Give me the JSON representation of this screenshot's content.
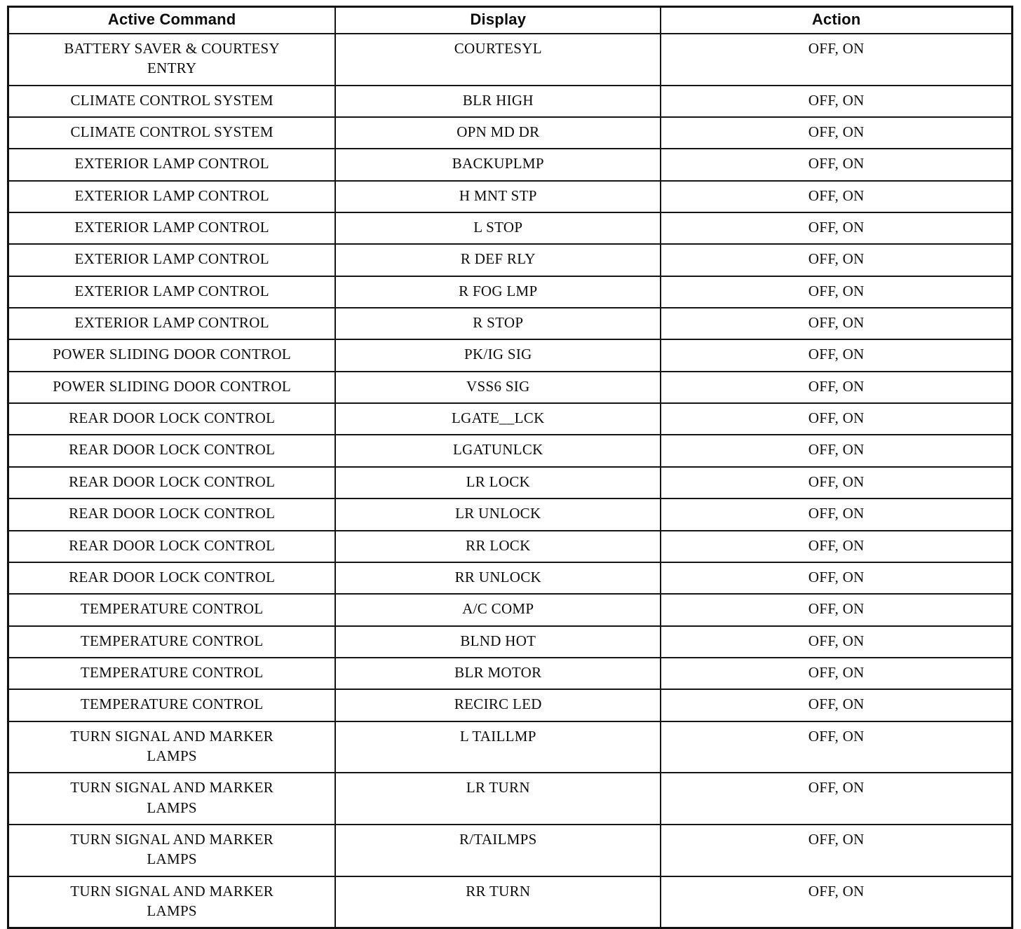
{
  "table": {
    "headers": [
      "Active Command",
      "Display",
      "Action"
    ],
    "rows": [
      {
        "command": "BATTERY SAVER & COURTESY ENTRY",
        "display": "COURTESYL",
        "action": "OFF, ON"
      },
      {
        "command": "CLIMATE CONTROL SYSTEM",
        "display": "BLR HIGH",
        "action": "OFF, ON"
      },
      {
        "command": "CLIMATE CONTROL SYSTEM",
        "display": "OPN MD DR",
        "action": "OFF, ON"
      },
      {
        "command": "EXTERIOR LAMP CONTROL",
        "display": "BACKUPLMP",
        "action": "OFF, ON"
      },
      {
        "command": "EXTERIOR LAMP CONTROL",
        "display": "H MNT STP",
        "action": "OFF, ON"
      },
      {
        "command": "EXTERIOR LAMP CONTROL",
        "display": "L STOP",
        "action": "OFF, ON"
      },
      {
        "command": "EXTERIOR LAMP CONTROL",
        "display": "R DEF RLY",
        "action": "OFF, ON"
      },
      {
        "command": "EXTERIOR LAMP CONTROL",
        "display": "R FOG LMP",
        "action": "OFF, ON"
      },
      {
        "command": "EXTERIOR LAMP CONTROL",
        "display": "R STOP",
        "action": "OFF, ON"
      },
      {
        "command": "POWER SLIDING DOOR CONTROL",
        "display": "PK/IG SIG",
        "action": "OFF, ON"
      },
      {
        "command": "POWER SLIDING DOOR CONTROL",
        "display": "VSS6 SIG",
        "action": "OFF, ON"
      },
      {
        "command": "REAR DOOR LOCK CONTROL",
        "display": "LGATE__LCK",
        "action": "OFF, ON"
      },
      {
        "command": "REAR DOOR LOCK CONTROL",
        "display": "LGATUNLCK",
        "action": "OFF, ON"
      },
      {
        "command": "REAR DOOR LOCK CONTROL",
        "display": "LR LOCK",
        "action": "OFF, ON"
      },
      {
        "command": "REAR DOOR LOCK CONTROL",
        "display": "LR UNLOCK",
        "action": "OFF, ON"
      },
      {
        "command": "REAR DOOR LOCK CONTROL",
        "display": "RR LOCK",
        "action": "OFF, ON"
      },
      {
        "command": "REAR DOOR LOCK CONTROL",
        "display": "RR UNLOCK",
        "action": "OFF, ON"
      },
      {
        "command": "TEMPERATURE CONTROL",
        "display": "A/C COMP",
        "action": "OFF, ON"
      },
      {
        "command": "TEMPERATURE CONTROL",
        "display": "BLND HOT",
        "action": "OFF, ON"
      },
      {
        "command": "TEMPERATURE CONTROL",
        "display": "BLR MOTOR",
        "action": "OFF, ON"
      },
      {
        "command": "TEMPERATURE CONTROL",
        "display": "RECIRC LED",
        "action": "OFF, ON"
      },
      {
        "command": "TURN SIGNAL AND MARKER LAMPS",
        "display": "L TAILLMP",
        "action": "OFF, ON"
      },
      {
        "command": "TURN SIGNAL AND MARKER LAMPS",
        "display": "LR TURN",
        "action": "OFF, ON"
      },
      {
        "command": "TURN SIGNAL AND MARKER LAMPS",
        "display": "R/TAILMPS",
        "action": "OFF, ON"
      },
      {
        "command": "TURN SIGNAL AND MARKER LAMPS",
        "display": "RR TURN",
        "action": "OFF, ON"
      }
    ]
  }
}
